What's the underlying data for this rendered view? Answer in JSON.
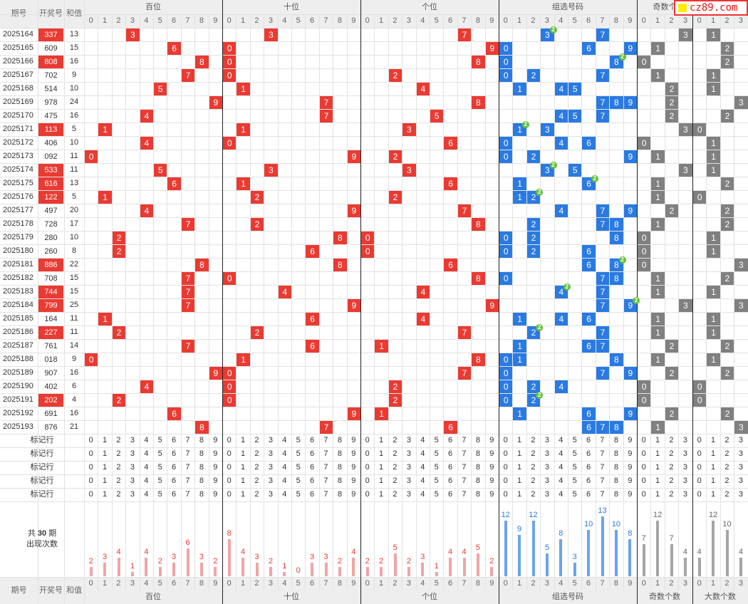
{
  "logo": {
    "text": "cz89.com"
  },
  "header": {
    "issue": "期号",
    "draw": "开奖号",
    "sum": "和值",
    "groups": [
      "百位",
      "十位",
      "个位",
      "组选号码",
      "奇数个数",
      "大数个数"
    ],
    "odd_header_visible": "奇数个",
    "digits10": [
      "0",
      "1",
      "2",
      "3",
      "4",
      "5",
      "6",
      "7",
      "8",
      "9"
    ],
    "digits4": [
      "0",
      "1",
      "2",
      "3"
    ]
  },
  "rows": [
    {
      "issue": "2025164",
      "num": "337",
      "sum": "13",
      "red": true,
      "odd": 3,
      "big": 1
    },
    {
      "issue": "2025165",
      "num": "609",
      "sum": "15",
      "red": false,
      "odd": 1,
      "big": 2
    },
    {
      "issue": "2025166",
      "num": "808",
      "sum": "16",
      "red": true,
      "odd": 0,
      "big": 2
    },
    {
      "issue": "2025167",
      "num": "702",
      "sum": "9",
      "red": false,
      "odd": 1,
      "big": 1
    },
    {
      "issue": "2025168",
      "num": "514",
      "sum": "10",
      "red": false,
      "odd": 2,
      "big": 1
    },
    {
      "issue": "2025169",
      "num": "978",
      "sum": "24",
      "red": false,
      "odd": 2,
      "big": 3
    },
    {
      "issue": "2025170",
      "num": "475",
      "sum": "16",
      "red": false,
      "odd": 2,
      "big": 2
    },
    {
      "issue": "2025171",
      "num": "113",
      "sum": "5",
      "red": true,
      "odd": 3,
      "big": 0
    },
    {
      "issue": "2025172",
      "num": "406",
      "sum": "10",
      "red": false,
      "odd": 0,
      "big": 1
    },
    {
      "issue": "2025173",
      "num": "092",
      "sum": "11",
      "red": false,
      "odd": 1,
      "big": 1
    },
    {
      "issue": "2025174",
      "num": "533",
      "sum": "11",
      "red": true,
      "odd": 3,
      "big": 1
    },
    {
      "issue": "2025175",
      "num": "616",
      "sum": "13",
      "red": true,
      "odd": 1,
      "big": 2
    },
    {
      "issue": "2025176",
      "num": "122",
      "sum": "5",
      "red": true,
      "odd": 1,
      "big": 0
    },
    {
      "issue": "2025177",
      "num": "497",
      "sum": "20",
      "red": false,
      "odd": 2,
      "big": 2
    },
    {
      "issue": "2025178",
      "num": "728",
      "sum": "17",
      "red": false,
      "odd": 1,
      "big": 2
    },
    {
      "issue": "2025179",
      "num": "280",
      "sum": "10",
      "red": false,
      "odd": 0,
      "big": 1
    },
    {
      "issue": "2025180",
      "num": "260",
      "sum": "8",
      "red": false,
      "odd": 0,
      "big": 1
    },
    {
      "issue": "2025181",
      "num": "886",
      "sum": "22",
      "red": true,
      "odd": 0,
      "big": 3
    },
    {
      "issue": "2025182",
      "num": "708",
      "sum": "15",
      "red": false,
      "odd": 1,
      "big": 2
    },
    {
      "issue": "2025183",
      "num": "744",
      "sum": "15",
      "red": true,
      "odd": 1,
      "big": 1
    },
    {
      "issue": "2025184",
      "num": "799",
      "sum": "25",
      "red": true,
      "odd": 3,
      "big": 3
    },
    {
      "issue": "2025185",
      "num": "164",
      "sum": "11",
      "red": false,
      "odd": 1,
      "big": 1
    },
    {
      "issue": "2025186",
      "num": "227",
      "sum": "11",
      "red": true,
      "odd": 1,
      "big": 1
    },
    {
      "issue": "2025187",
      "num": "761",
      "sum": "14",
      "red": false,
      "odd": 2,
      "big": 2
    },
    {
      "issue": "2025188",
      "num": "018",
      "sum": "9",
      "red": false,
      "odd": 1,
      "big": 1
    },
    {
      "issue": "2025189",
      "num": "907",
      "sum": "16",
      "red": false,
      "odd": 2,
      "big": 2
    },
    {
      "issue": "2025190",
      "num": "402",
      "sum": "6",
      "red": false,
      "odd": 0,
      "big": 0
    },
    {
      "issue": "2025191",
      "num": "202",
      "sum": "4",
      "red": true,
      "odd": 0,
      "big": 0
    },
    {
      "issue": "2025192",
      "num": "691",
      "sum": "16",
      "red": false,
      "odd": 2,
      "big": 2
    },
    {
      "issue": "2025193",
      "num": "876",
      "sum": "21",
      "red": false,
      "odd": 1,
      "big": 3
    }
  ],
  "mark_rows": {
    "label": "标记行",
    "count": 5
  },
  "summary": {
    "label_line1": "共",
    "total": "30",
    "label_line1b": "期",
    "label_line2": "出现次数"
  },
  "chart_data": {
    "type": "bar",
    "groups": [
      {
        "name": "百位",
        "categories": [
          "0",
          "1",
          "2",
          "3",
          "4",
          "5",
          "6",
          "7",
          "8",
          "9"
        ],
        "values": [
          2,
          3,
          4,
          1,
          4,
          2,
          3,
          6,
          3,
          2
        ],
        "color": "#ea3a32"
      },
      {
        "name": "十位",
        "categories": [
          "0",
          "1",
          "2",
          "3",
          "4",
          "5",
          "6",
          "7",
          "8",
          "9"
        ],
        "values": [
          8,
          4,
          3,
          2,
          1,
          0,
          3,
          3,
          2,
          4
        ],
        "color": "#ea3a32"
      },
      {
        "name": "个位",
        "categories": [
          "0",
          "1",
          "2",
          "3",
          "4",
          "5",
          "6",
          "7",
          "8",
          "9"
        ],
        "values": [
          2,
          2,
          5,
          2,
          3,
          1,
          4,
          4,
          5,
          2
        ],
        "color": "#ea3a32"
      },
      {
        "name": "组选号码",
        "categories": [
          "0",
          "1",
          "2",
          "3",
          "4",
          "5",
          "6",
          "7",
          "8",
          "9"
        ],
        "values": [
          12,
          9,
          12,
          5,
          8,
          3,
          10,
          13,
          10,
          8
        ],
        "color": "#2a7ae2"
      },
      {
        "name": "奇数个数",
        "categories": [
          "0",
          "1",
          "2",
          "3"
        ],
        "values": [
          7,
          12,
          7,
          4
        ],
        "color": "#808080"
      },
      {
        "name": "大数个数",
        "categories": [
          "0",
          "1",
          "2",
          "3"
        ],
        "values": [
          4,
          12,
          10,
          4
        ],
        "color": "#808080"
      }
    ]
  },
  "colors": {
    "red": "#ea3a32",
    "blue": "#2a7ae2",
    "gray": "#808080",
    "badge": "#61c13a"
  }
}
